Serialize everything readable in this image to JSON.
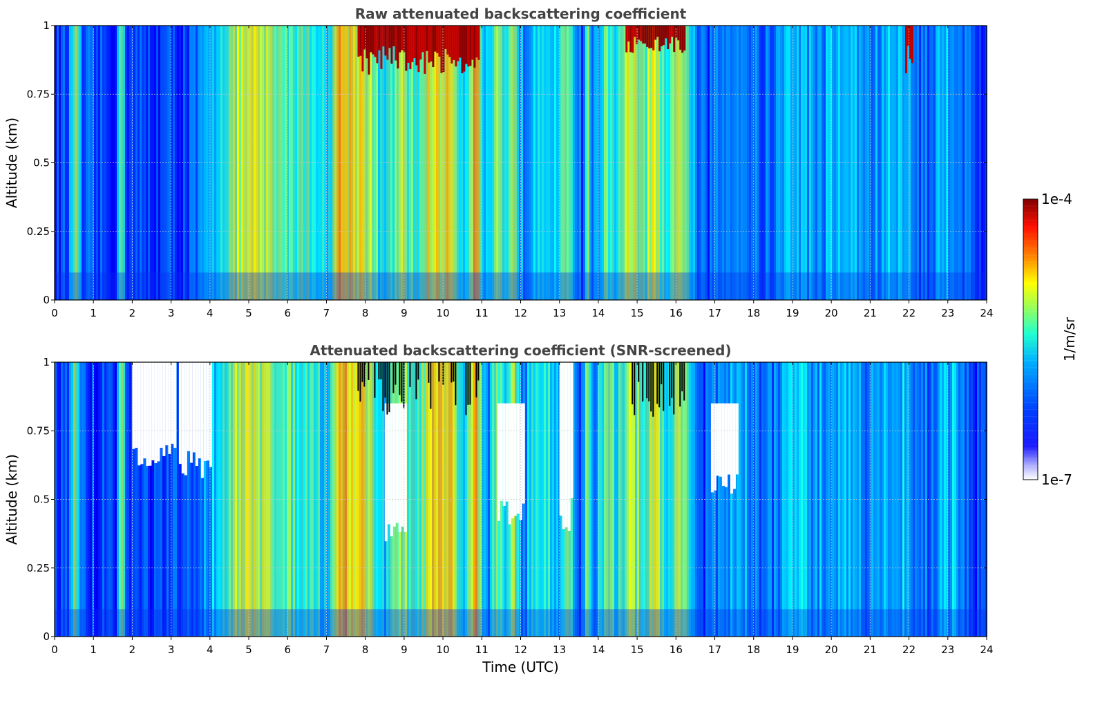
{
  "chart_data": [
    {
      "type": "heatmap",
      "title": "Raw attenuated backscattering coefficient",
      "xlabel": "",
      "ylabel": "Altitude (km)",
      "xlim": [
        0,
        24
      ],
      "ylim": [
        0,
        1
      ],
      "xticks": [
        "0",
        "1",
        "2",
        "3",
        "4",
        "5",
        "6",
        "7",
        "8",
        "9",
        "10",
        "11",
        "12",
        "13",
        "14",
        "15",
        "16",
        "17",
        "18",
        "19",
        "20",
        "21",
        "22",
        "23",
        "24"
      ],
      "yticks": [
        "0",
        "0.25",
        "0.5",
        "0.75",
        "1"
      ],
      "grid": true,
      "colormap": "jet",
      "color_scale": "log",
      "clim": [
        1e-07,
        0.0001
      ],
      "features": [
        {
          "x_range": [
            7.8,
            10.9
          ],
          "y_range": [
            0.82,
            1.0
          ],
          "level": "high"
        },
        {
          "x_range": [
            14.7,
            16.2
          ],
          "y_range": [
            0.9,
            1.0
          ],
          "level": "high"
        },
        {
          "x_range": [
            21.9,
            22.1
          ],
          "y_range": [
            0.82,
            1.0
          ],
          "level": "high"
        }
      ]
    },
    {
      "type": "heatmap",
      "title": "Attenuated backscattering coefficient (SNR-screened)",
      "xlabel": "Time (UTC)",
      "ylabel": "Altitude (km)",
      "xlim": [
        0,
        24
      ],
      "ylim": [
        0,
        1
      ],
      "xticks": [
        "0",
        "1",
        "2",
        "3",
        "4",
        "5",
        "6",
        "7",
        "8",
        "9",
        "10",
        "11",
        "12",
        "13",
        "14",
        "15",
        "16",
        "17",
        "18",
        "19",
        "20",
        "21",
        "22",
        "23",
        "24"
      ],
      "yticks": [
        "0",
        "0.25",
        "0.5",
        "0.75",
        "1"
      ],
      "grid": true,
      "colormap": "jet",
      "color_scale": "log",
      "clim": [
        1e-07,
        0.0001
      ],
      "masked_regions": [
        {
          "x_range": [
            2.0,
            3.1
          ],
          "y_range": [
            0.62,
            1.0
          ]
        },
        {
          "x_range": [
            3.2,
            4.0
          ],
          "y_range": [
            0.57,
            1.0
          ]
        },
        {
          "x_range": [
            8.5,
            9.0
          ],
          "y_range": [
            0.33,
            0.85
          ]
        },
        {
          "x_range": [
            11.4,
            12.1
          ],
          "y_range": [
            0.4,
            0.85
          ]
        },
        {
          "x_range": [
            13.0,
            13.3
          ],
          "y_range": [
            0.37,
            1.0
          ]
        },
        {
          "x_range": [
            16.9,
            17.6
          ],
          "y_range": [
            0.52,
            0.85
          ]
        }
      ]
    }
  ],
  "colorbar": {
    "label": "1/m/sr",
    "max_label": "1e-4",
    "min_label": "1e-7"
  },
  "colors": {
    "background": "#0a2cf0",
    "grid": "#cccccc",
    "title": "#444444"
  }
}
